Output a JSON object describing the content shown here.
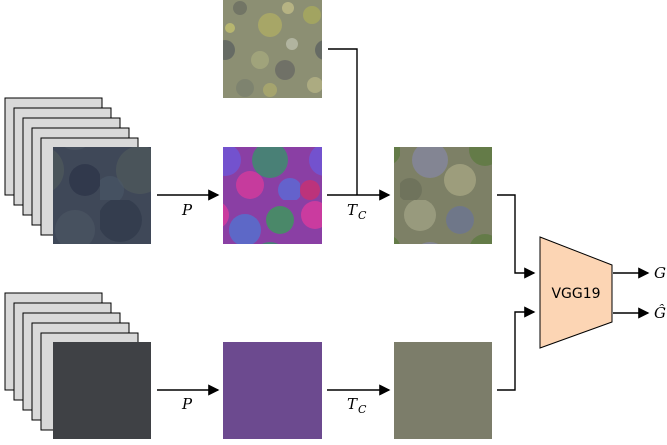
{
  "operators": {
    "p_top": "P",
    "p_bottom": "P",
    "tc_top": {
      "base": "T",
      "sub": "C"
    },
    "tc_bottom": {
      "base": "T",
      "sub": "C"
    }
  },
  "network": {
    "label": "VGG19",
    "fill": "#fcd5b4"
  },
  "outputs": {
    "g": "G",
    "g_hat": "Ĝ"
  },
  "colors": {
    "stack_fill": "#d9d9d9",
    "input_dark_blue": "#3b4555",
    "input_flat_gray": "#3f4145",
    "pca_flat_purple": "#6c4a8f",
    "transfer_flat_olive": "#7c7d6a",
    "style_texture": "#8c9070"
  }
}
